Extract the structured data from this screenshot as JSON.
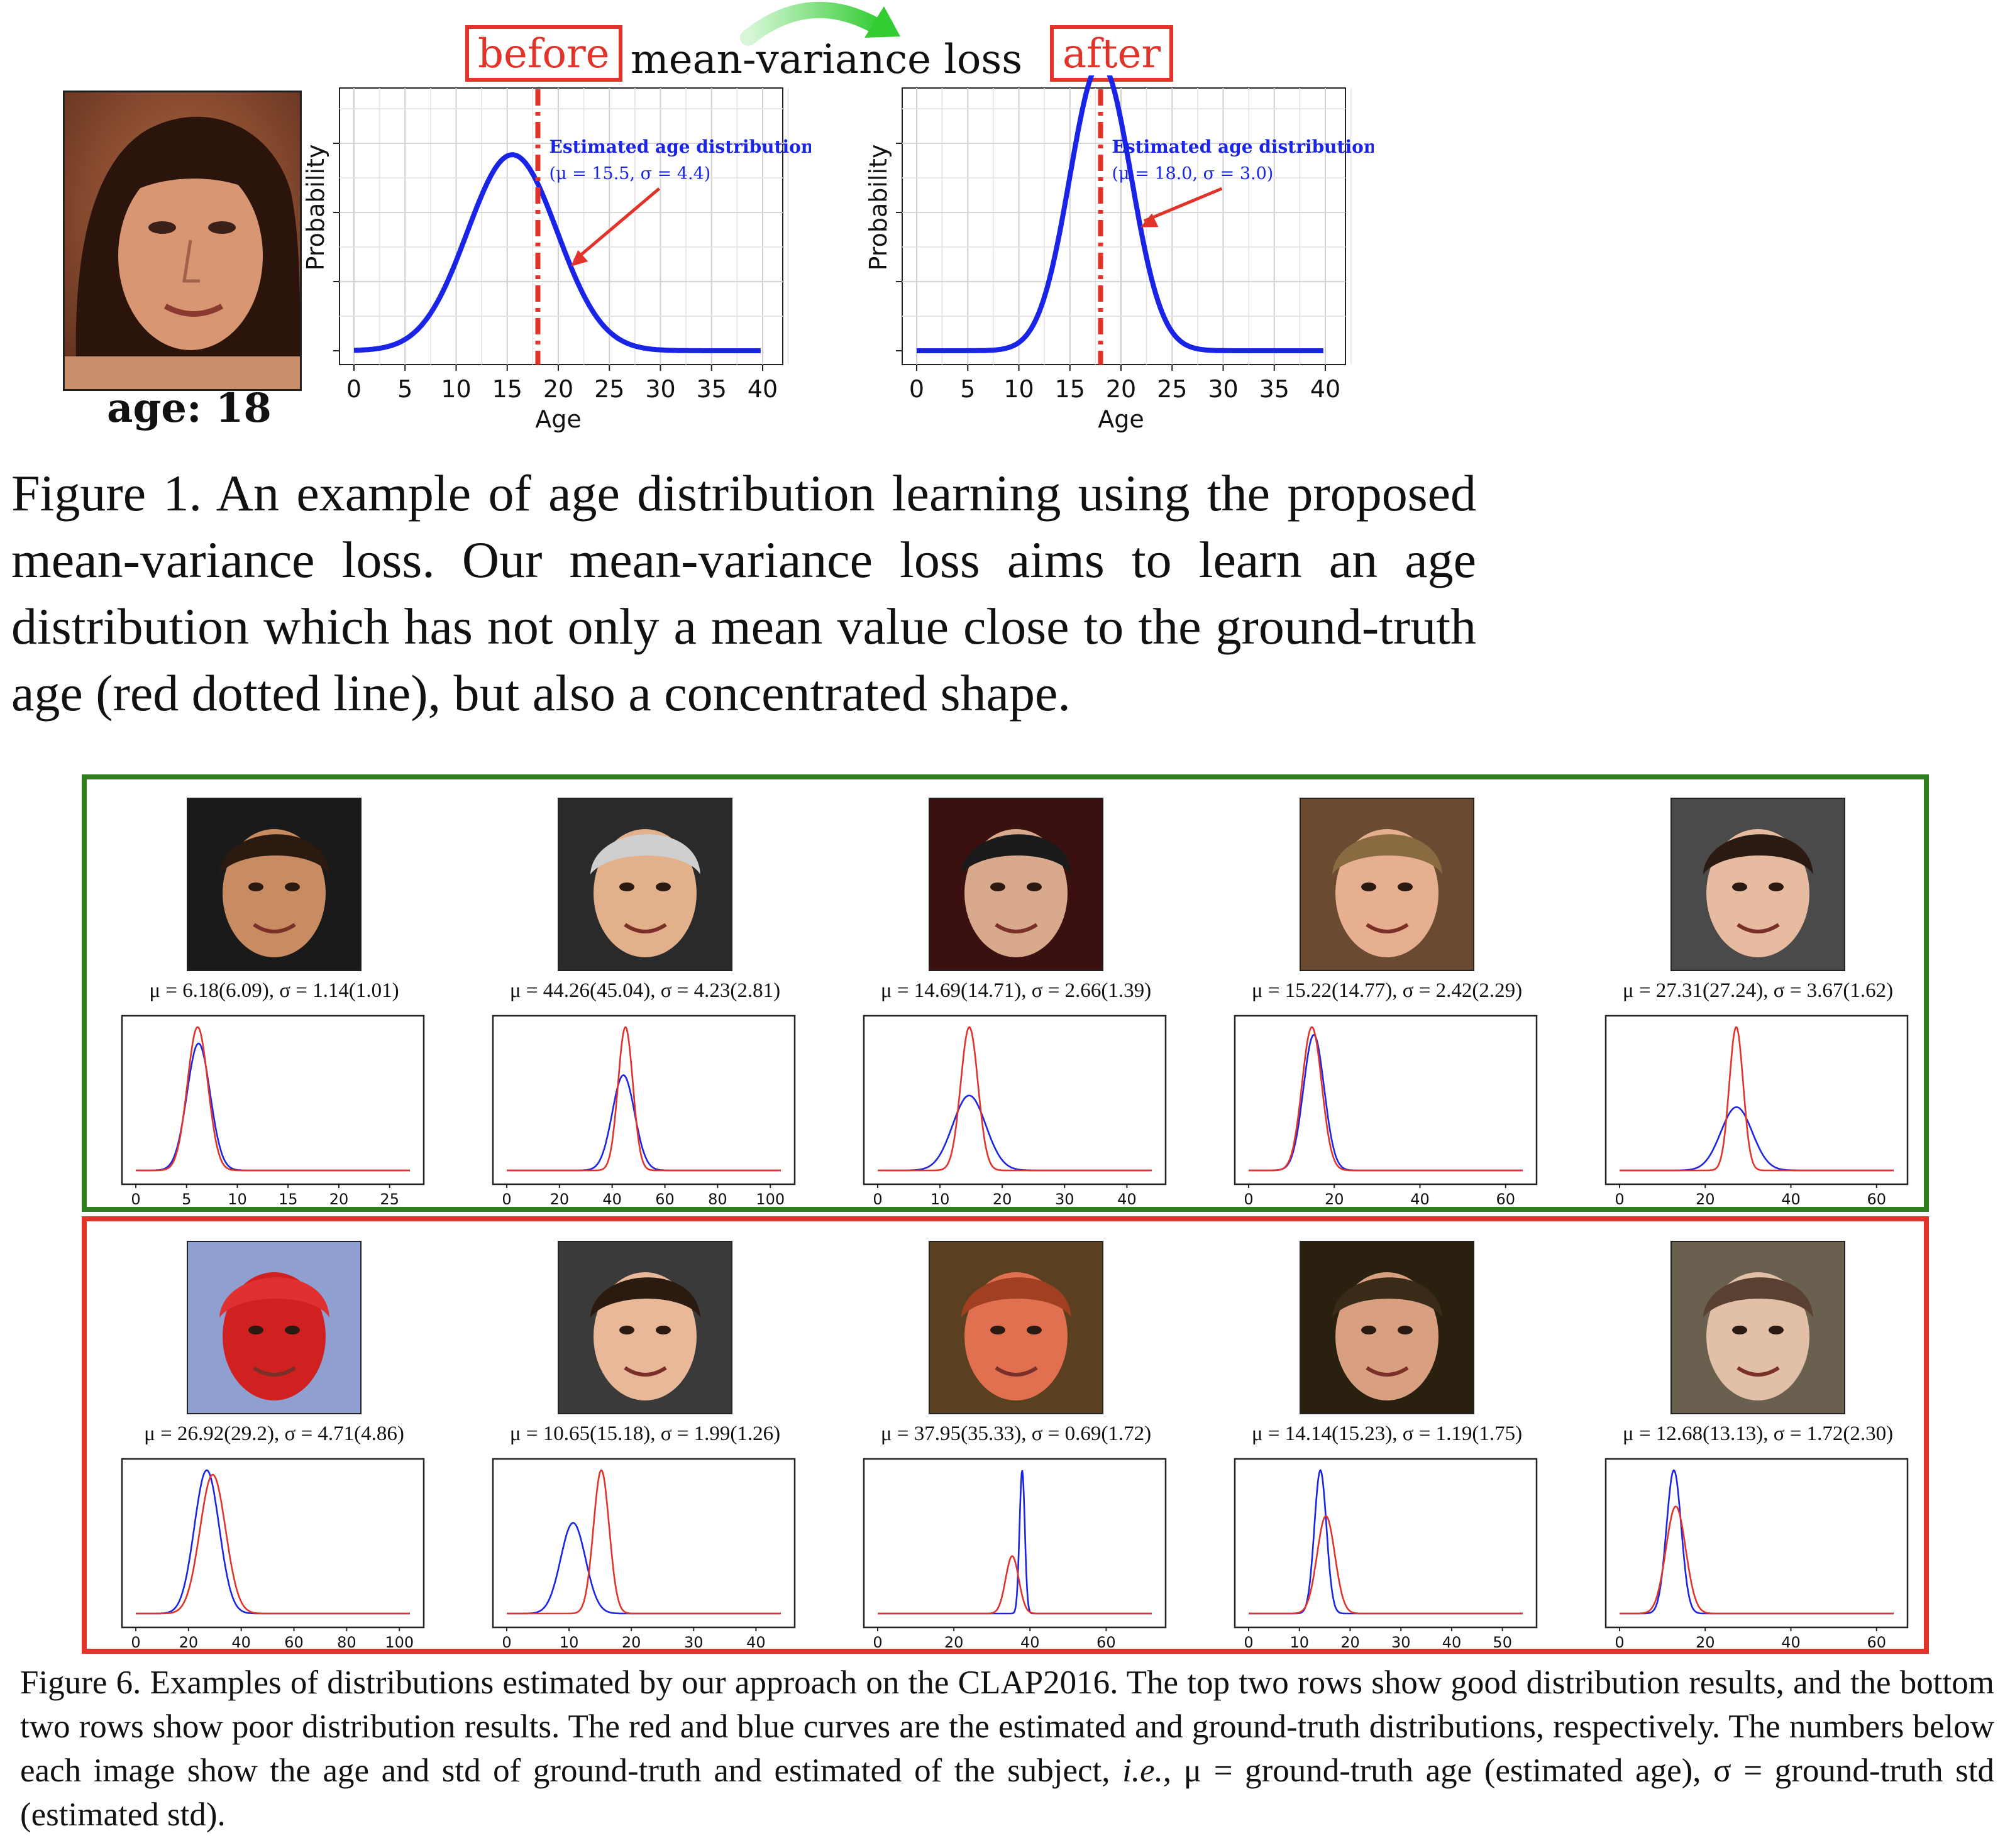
{
  "figure1": {
    "before_label": "before",
    "after_label": "after",
    "title": "mean-variance loss",
    "age_label": "age:  18",
    "caption": "Figure 1. An example of age distribution learning using the proposed mean-variance loss. Our mean-variance loss aims to learn an age distribution which has not only a mean value close to the ground-truth age (red dotted line), but also a concentrated shape.",
    "colors": {
      "accent_red": "#e2332b",
      "curve_blue": "#1a24e6",
      "arrow_green": "#7ee87e"
    }
  },
  "figure6": {
    "caption_part1": "Figure 6. Examples of distributions estimated by our approach on the CLAP2016. The top two rows show good distribution results, and the bottom two rows show poor distribution results. The red and blue curves are the estimated and ground-truth distributions, respectively. The numbers below each image show the age and std of ground-truth and estimated of the subject, ",
    "caption_ie": "i.e.",
    "caption_part2": ", μ = ground-truth age (estimated age), σ = ground-truth std (estimated std).",
    "good_row": [
      {
        "label": "μ = 6.18(6.09), σ = 1.14(1.01)"
      },
      {
        "label": "μ = 44.26(45.04), σ = 4.23(2.81)"
      },
      {
        "label": "μ = 14.69(14.71), σ = 2.66(1.39)"
      },
      {
        "label": "μ = 15.22(14.77), σ = 2.42(2.29)"
      },
      {
        "label": "μ = 27.31(27.24), σ = 3.67(1.62)"
      }
    ],
    "bad_row": [
      {
        "label": "μ = 26.92(29.2), σ = 4.71(4.86)"
      },
      {
        "label": "μ = 10.65(15.18), σ = 1.99(1.26)"
      },
      {
        "label": "μ = 37.95(35.33), σ = 0.69(1.72)"
      },
      {
        "label": "μ = 14.14(15.23), σ = 1.19(1.75)"
      },
      {
        "label": "μ = 12.68(13.13), σ = 1.72(2.30)"
      }
    ],
    "colors": {
      "good_border": "#2e7d1e",
      "bad_border": "#e2332b",
      "estimated": "#e2332b",
      "ground_truth": "#1a24e6"
    }
  },
  "chart_data": [
    {
      "type": "line",
      "xlabel": "Age",
      "ylabel": "Probability",
      "x_ticks": [
        0,
        5,
        10,
        15,
        20,
        25,
        30,
        35,
        40
      ],
      "xlim": [
        0,
        40
      ],
      "series": [
        {
          "mu": 15.5,
          "sigma": 4.4
        }
      ],
      "reference_line_x": 18,
      "annotation_title": "Estimated age distribution",
      "annotation_params": "(μ = 15.5, σ = 4.4)"
    },
    {
      "type": "line",
      "xlabel": "Age",
      "ylabel": "Probability",
      "x_ticks": [
        0,
        5,
        10,
        15,
        20,
        25,
        30,
        35,
        40
      ],
      "xlim": [
        0,
        40
      ],
      "series": [
        {
          "mu": 18.0,
          "sigma": 3.0
        }
      ],
      "reference_line_x": 18,
      "annotation_title": "Estimated age distribution",
      "annotation_params": "(μ = 18.0, σ = 3.0)"
    },
    {
      "type": "line",
      "xlim": [
        0,
        27
      ],
      "x_ticks": [
        0,
        5,
        10,
        15,
        20,
        25
      ],
      "estimated": {
        "mu": 6.09,
        "sigma": 1.01
      },
      "ground_truth": {
        "mu": 6.18,
        "sigma": 1.14
      }
    },
    {
      "type": "line",
      "xlim": [
        0,
        104
      ],
      "x_ticks": [
        0,
        20,
        40,
        60,
        80,
        100
      ],
      "estimated": {
        "mu": 45.04,
        "sigma": 2.81
      },
      "ground_truth": {
        "mu": 44.26,
        "sigma": 4.23
      }
    },
    {
      "type": "line",
      "xlim": [
        0,
        44
      ],
      "x_ticks": [
        0,
        10,
        20,
        30,
        40
      ],
      "estimated": {
        "mu": 14.71,
        "sigma": 1.39
      },
      "ground_truth": {
        "mu": 14.69,
        "sigma": 2.66
      }
    },
    {
      "type": "line",
      "xlim": [
        0,
        64
      ],
      "x_ticks": [
        0,
        20,
        40,
        60
      ],
      "estimated": {
        "mu": 14.77,
        "sigma": 2.29
      },
      "ground_truth": {
        "mu": 15.22,
        "sigma": 2.42
      }
    },
    {
      "type": "line",
      "xlim": [
        0,
        64
      ],
      "x_ticks": [
        0,
        20,
        40,
        60
      ],
      "estimated": {
        "mu": 27.24,
        "sigma": 1.62
      },
      "ground_truth": {
        "mu": 27.31,
        "sigma": 3.67
      }
    },
    {
      "type": "line",
      "xlim": [
        0,
        104
      ],
      "x_ticks": [
        0,
        20,
        40,
        60,
        80,
        100
      ],
      "estimated": {
        "mu": 29.2,
        "sigma": 4.86
      },
      "ground_truth": {
        "mu": 26.92,
        "sigma": 4.71
      }
    },
    {
      "type": "line",
      "xlim": [
        0,
        44
      ],
      "x_ticks": [
        0,
        10,
        20,
        30,
        40
      ],
      "estimated": {
        "mu": 15.18,
        "sigma": 1.26
      },
      "ground_truth": {
        "mu": 10.65,
        "sigma": 1.99
      }
    },
    {
      "type": "line",
      "xlim": [
        0,
        72
      ],
      "x_ticks": [
        0,
        20,
        40,
        60
      ],
      "estimated": {
        "mu": 35.33,
        "sigma": 1.72
      },
      "ground_truth": {
        "mu": 37.95,
        "sigma": 0.69
      }
    },
    {
      "type": "line",
      "xlim": [
        0,
        54
      ],
      "x_ticks": [
        0,
        10,
        20,
        30,
        40,
        50
      ],
      "estimated": {
        "mu": 15.23,
        "sigma": 1.75
      },
      "ground_truth": {
        "mu": 14.14,
        "sigma": 1.19
      }
    },
    {
      "type": "line",
      "xlim": [
        0,
        64
      ],
      "x_ticks": [
        0,
        20,
        40,
        60
      ],
      "estimated": {
        "mu": 13.13,
        "sigma": 2.3
      },
      "ground_truth": {
        "mu": 12.68,
        "sigma": 1.72
      }
    }
  ]
}
